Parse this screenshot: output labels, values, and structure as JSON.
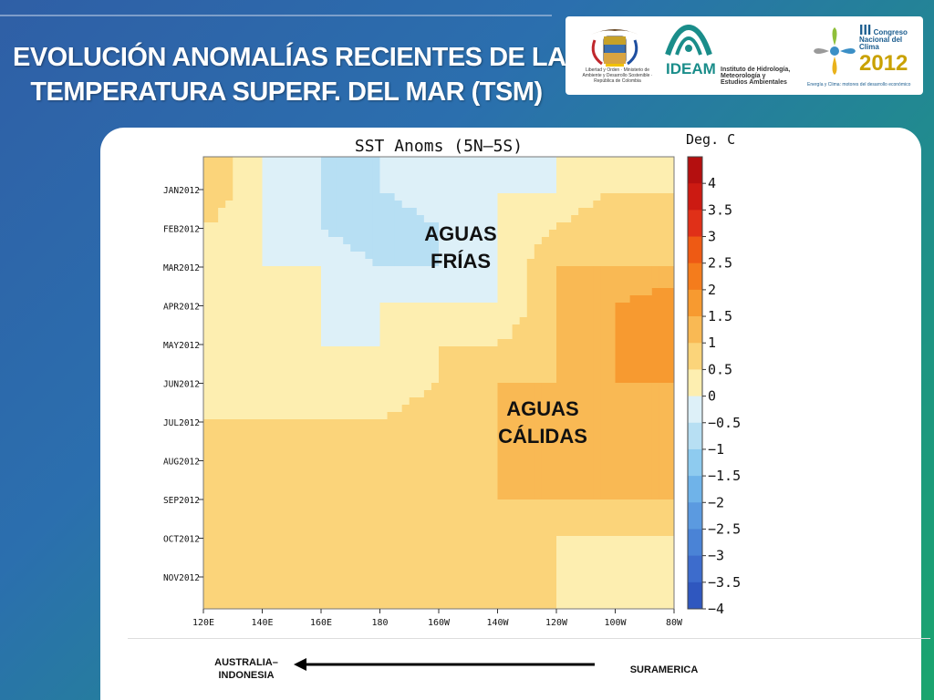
{
  "slide": {
    "title_line1": "EVOLUCIÓN ANOMALÍAS RECIENTES DE LA",
    "title_line2": "TEMPERATURA SUPERF. DEL MAR (TSM)"
  },
  "logos": {
    "ministerio_text": "Libertad y Orden · Ministerio de Ambiente y Desarrollo Sostenible · República de Colombia",
    "ideam_name": "IDEAM",
    "ideam_desc_l1": "Instituto de Hidrología,",
    "ideam_desc_l2": "Meteorología y",
    "ideam_desc_l3": "Estudios Ambientales",
    "congreso_roman": "III",
    "congreso_l1": "Congreso",
    "congreso_l2": "Nacional",
    "congreso_l3": "del Clima",
    "congreso_year": "2012",
    "congreso_foot": "Energía y Clima: motores del desarrollo económico"
  },
  "annotations": {
    "cold_l1": "AGUAS",
    "cold_l2": "FRÍAS",
    "warm_l1": "AGUAS",
    "warm_l2": "CÁLIDAS",
    "west_l1": "AUSTRALIA–",
    "west_l2": "INDONESIA",
    "east": "SURAMERICA"
  },
  "chart_data": {
    "type": "heatmap",
    "title": "SST Anoms (5N–5S)",
    "colorbar_title": "Deg. C",
    "xlabel": "",
    "ylabel": "",
    "x_ticks": [
      "120E",
      "140E",
      "160E",
      "180",
      "160W",
      "140W",
      "120W",
      "100W",
      "80W"
    ],
    "x_tick_lon": [
      120,
      140,
      160,
      180,
      200,
      220,
      240,
      260,
      280
    ],
    "y_ticks": [
      "JAN2012",
      "FEB2012",
      "MAR2012",
      "APR2012",
      "MAY2012",
      "JUN2012",
      "JUL2012",
      "AUG2012",
      "SEP2012",
      "OCT2012",
      "NOV2012"
    ],
    "colorbar_ticks": [
      "4",
      "3.5",
      "3",
      "2.5",
      "2",
      "1.5",
      "1",
      "0.5",
      "0",
      "−0.5",
      "−1",
      "−1.5",
      "−2",
      "−2.5",
      "−3",
      "−3.5",
      "−4"
    ],
    "colorbar_levels": [
      4,
      3.5,
      3,
      2.5,
      2,
      1.5,
      1,
      0.5,
      0,
      -0.5,
      -1,
      -1.5,
      -2,
      -2.5,
      -3,
      -3.5,
      -4,
      -4.5
    ],
    "colorbar_colors": [
      "#b40f0f",
      "#cc1a12",
      "#e03018",
      "#ee5a14",
      "#f47c1c",
      "#f79a30",
      "#f9b954",
      "#fbd47a",
      "#fdeeb0",
      "#ddf0f8",
      "#b7dff3",
      "#8ecbef",
      "#6fb3e9",
      "#5b9ae0",
      "#4a83d6",
      "#3d6ccc",
      "#2f57bf"
    ],
    "x_range": [
      120,
      280
    ],
    "y_range": [
      "JAN2012",
      "NOV2012"
    ],
    "grid": false,
    "values_lon": [
      120,
      140,
      160,
      180,
      200,
      220,
      240,
      260,
      280
    ],
    "values": [
      [
        0.5,
        -0.5,
        -1.0,
        -1.0,
        -0.5,
        -0.5,
        -0.5,
        0.0,
        0.0
      ],
      [
        0.0,
        -0.5,
        -1.0,
        -1.5,
        -1.0,
        -0.5,
        0.0,
        0.5,
        0.5
      ],
      [
        0.0,
        -0.5,
        -0.5,
        -1.0,
        -1.0,
        -0.5,
        0.5,
        0.5,
        0.5
      ],
      [
        0.0,
        0.0,
        -0.5,
        -0.5,
        -0.5,
        -0.5,
        0.5,
        1.0,
        1.5
      ],
      [
        0.0,
        0.0,
        -0.5,
        -0.5,
        0.0,
        0.0,
        0.5,
        1.0,
        1.5
      ],
      [
        0.0,
        0.0,
        0.0,
        -0.5,
        0.0,
        0.5,
        0.5,
        1.0,
        1.0
      ],
      [
        0.0,
        0.0,
        0.0,
        0.0,
        0.5,
        0.5,
        1.0,
        1.0,
        1.0
      ],
      [
        0.5,
        0.5,
        0.0,
        0.5,
        0.5,
        0.5,
        1.0,
        1.0,
        0.5
      ],
      [
        0.5,
        0.5,
        0.5,
        0.5,
        0.5,
        0.5,
        0.5,
        0.5,
        0.5
      ],
      [
        0.5,
        0.5,
        0.5,
        0.5,
        0.5,
        0.5,
        0.0,
        0.0,
        0.0
      ],
      [
        0.5,
        0.5,
        0.5,
        0.5,
        0.5,
        0.0,
        0.0,
        0.0,
        0.0
      ]
    ]
  }
}
